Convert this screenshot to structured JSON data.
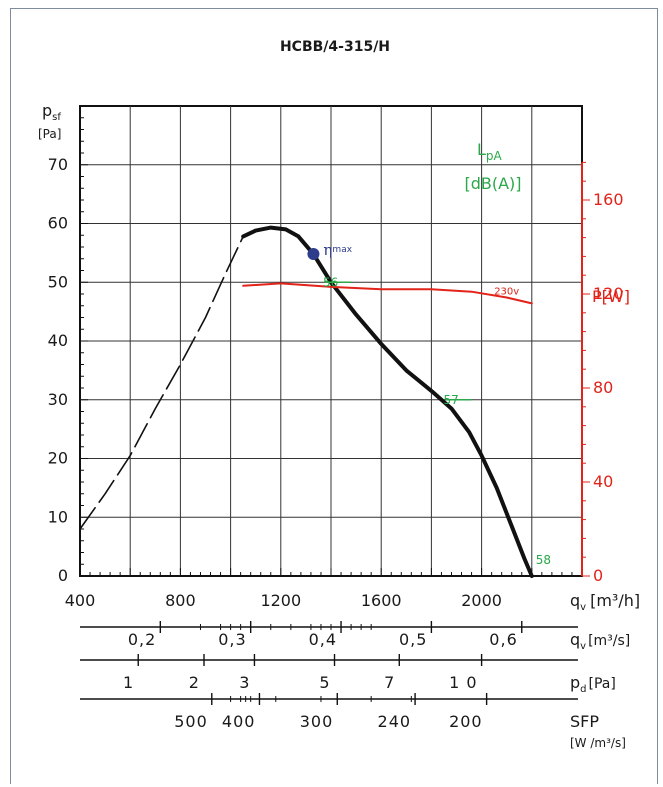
{
  "chart_data": {
    "type": "line",
    "title": "HCBB/4-315/H",
    "y_axis": {
      "label": "p",
      "label_sub": "sf",
      "unit": "[Pa]",
      "range": [
        0,
        80
      ],
      "ticks": [
        0,
        10,
        20,
        30,
        40,
        50,
        60,
        70
      ]
    },
    "x_axis": {
      "label": "q",
      "label_sub": "v",
      "unit": "[m³/h]",
      "range": [
        400,
        2400
      ],
      "ticks": [
        400,
        800,
        1200,
        1600,
        2000
      ]
    },
    "power_axis": {
      "label": "P",
      "unit": "[W]",
      "range": [
        0,
        200
      ],
      "ticks": [
        0,
        40,
        80,
        120,
        160
      ],
      "color": "#e2231a"
    },
    "sound_legend": {
      "label": "L",
      "label_sub": "pA",
      "unit": "[dB(A)]",
      "color": "#2aa84a"
    },
    "series": [
      {
        "name": "pressure",
        "color": "#111111",
        "points": [
          [
            1050,
            57.8
          ],
          [
            1100,
            58.8
          ],
          [
            1160,
            59.3
          ],
          [
            1220,
            59.0
          ],
          [
            1270,
            57.8
          ],
          [
            1330,
            54.8
          ],
          [
            1400,
            50.0
          ],
          [
            1500,
            44.5
          ],
          [
            1600,
            39.5
          ],
          [
            1700,
            35.0
          ],
          [
            1800,
            31.5
          ],
          [
            1880,
            28.5
          ],
          [
            1950,
            24.5
          ],
          [
            2000,
            20.5
          ],
          [
            2060,
            15.0
          ],
          [
            2120,
            8.5
          ],
          [
            2170,
            3.0
          ],
          [
            2200,
            0
          ]
        ]
      },
      {
        "name": "pressure-extrapolated",
        "color": "#111111",
        "points": [
          [
            400,
            8.0
          ],
          [
            500,
            14.0
          ],
          [
            600,
            20.5
          ],
          [
            700,
            28.5
          ],
          [
            800,
            36.0
          ],
          [
            900,
            44.0
          ],
          [
            980,
            51.5
          ],
          [
            1050,
            57.8
          ]
        ]
      },
      {
        "name": "230v",
        "color": "#e2231a",
        "points": [
          [
            1050,
            123.5
          ],
          [
            1200,
            124.5
          ],
          [
            1400,
            123.0
          ],
          [
            1600,
            122.0
          ],
          [
            1800,
            122.0
          ],
          [
            1960,
            121.0
          ],
          [
            2100,
            118.5
          ],
          [
            2200,
            116.0
          ]
        ]
      }
    ],
    "eta_max": {
      "label": "max",
      "symbol": "η",
      "x": 1330,
      "y": 54.8,
      "color": "#2e3c8c"
    },
    "sound_levels": [
      {
        "label": "56",
        "x": 1400,
        "y": 50.0
      },
      {
        "label": "57",
        "x": 1880,
        "y": 30.0
      },
      {
        "label": "58",
        "x": 2200,
        "y": 0
      }
    ],
    "power_series_label": "230v",
    "secondary_scales": [
      {
        "name": "qv-m3s",
        "label": "q",
        "label_sub": "v",
        "unit": "[m³/s]",
        "ticks": [
          {
            "label": "0,2",
            "x": 720
          },
          {
            "label": "0,3",
            "x": 1080
          },
          {
            "label": "0,4",
            "x": 1440
          },
          {
            "label": "0,5",
            "x": 1800
          },
          {
            "label": "0,6",
            "x": 2160
          }
        ]
      },
      {
        "name": "pd",
        "label": "p",
        "label_sub": "d",
        "unit": "[Pa]",
        "ticks": [
          {
            "label": "1",
            "x": 632
          },
          {
            "label": "2",
            "x": 894
          },
          {
            "label": "3",
            "x": 1095
          },
          {
            "label": "5",
            "x": 1414
          },
          {
            "label": "7",
            "x": 1672
          },
          {
            "label": "1 0",
            "x": 2000
          }
        ]
      },
      {
        "name": "sfp",
        "label": "SFP",
        "unit": "[W /m³/s]",
        "ticks": [
          {
            "label": "500",
            "x": 925
          },
          {
            "label": "400",
            "x": 1115
          },
          {
            "label": "300",
            "x": 1425
          },
          {
            "label": "240",
            "x": 1735
          },
          {
            "label": "200",
            "x": 2020
          }
        ]
      }
    ],
    "grid": true
  }
}
